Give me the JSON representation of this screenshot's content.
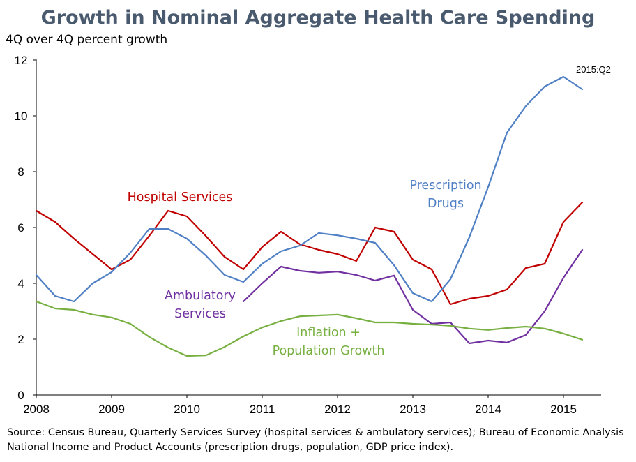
{
  "chart_data": {
    "type": "line",
    "title": "Growth in Nominal Aggregate Health Care Spending",
    "ylabel": "4Q over 4Q percent growth",
    "xlabel": "",
    "ylim": [
      0,
      12
    ],
    "yticks": [
      0,
      2,
      4,
      6,
      8,
      10,
      12
    ],
    "xlim": [
      2008,
      2015.5
    ],
    "xticks": [
      2008,
      2009,
      2010,
      2011,
      2012,
      2013,
      2014,
      2015
    ],
    "grid": false,
    "annotation": {
      "text": "2015:Q2"
    },
    "series": [
      {
        "name": "Hospital Services",
        "label_lines": [
          "Hospital Services"
        ],
        "color": "#c00000",
        "x": [
          2008,
          2008.25,
          2008.5,
          2008.75,
          2009,
          2009.25,
          2009.5,
          2009.75,
          2010,
          2010.25,
          2010.5,
          2010.75,
          2011,
          2011.25,
          2011.5,
          2011.75,
          2012,
          2012.25,
          2012.5,
          2012.75,
          2013,
          2013.25,
          2013.5,
          2013.75,
          2014,
          2014.25,
          2014.5,
          2014.75,
          2015,
          2015.25
        ],
        "values": [
          6.6,
          6.2,
          5.6,
          5.05,
          4.5,
          4.85,
          5.7,
          6.6,
          6.4,
          5.7,
          4.95,
          4.5,
          5.3,
          5.85,
          5.4,
          5.2,
          5.05,
          4.8,
          6.0,
          5.85,
          4.85,
          4.5,
          3.25,
          3.45,
          3.55,
          3.78,
          4.55,
          4.7,
          6.2,
          6.9
        ]
      },
      {
        "name": "Prescription Drugs",
        "label_lines": [
          "Prescription",
          "Drugs"
        ],
        "color": "#4f7fc4",
        "x": [
          2008,
          2008.25,
          2008.5,
          2008.75,
          2009,
          2009.25,
          2009.5,
          2009.75,
          2010,
          2010.25,
          2010.5,
          2010.75,
          2011,
          2011.25,
          2011.5,
          2011.75,
          2012,
          2012.25,
          2012.5,
          2012.75,
          2013,
          2013.25,
          2013.5,
          2013.75,
          2014,
          2014.25,
          2014.5,
          2014.75,
          2015,
          2015.25
        ],
        "values": [
          4.3,
          3.55,
          3.35,
          4.0,
          4.4,
          5.1,
          5.95,
          5.95,
          5.6,
          5.0,
          4.3,
          4.05,
          4.7,
          5.15,
          5.35,
          5.8,
          5.72,
          5.6,
          5.45,
          4.65,
          3.65,
          3.35,
          4.15,
          5.65,
          7.45,
          9.4,
          10.35,
          11.05,
          11.4,
          10.95
        ]
      },
      {
        "name": "Ambulatory Services",
        "label_lines": [
          "Ambulatory",
          "Services"
        ],
        "color": "#7030a0",
        "x": [
          2010.75,
          2011,
          2011.25,
          2011.5,
          2011.75,
          2012,
          2012.25,
          2012.5,
          2012.75,
          2013,
          2013.25,
          2013.5,
          2013.75,
          2014,
          2014.25,
          2014.5,
          2014.75,
          2015,
          2015.25
        ],
        "values": [
          3.35,
          4.0,
          4.6,
          4.45,
          4.38,
          4.42,
          4.3,
          4.1,
          4.28,
          3.05,
          2.55,
          2.6,
          1.85,
          1.95,
          1.88,
          2.15,
          3.0,
          4.2,
          5.2
        ]
      },
      {
        "name": "Inflation + Population Growth",
        "label_lines": [
          "Inflation +",
          "Population Growth"
        ],
        "color": "#77b041",
        "x": [
          2008,
          2008.25,
          2008.5,
          2008.75,
          2009,
          2009.25,
          2009.5,
          2009.75,
          2010,
          2010.25,
          2010.5,
          2010.75,
          2011,
          2011.25,
          2011.5,
          2011.75,
          2012,
          2012.25,
          2012.5,
          2012.75,
          2013,
          2013.25,
          2013.5,
          2013.75,
          2014,
          2014.25,
          2014.5,
          2014.75,
          2015,
          2015.25
        ],
        "values": [
          3.35,
          3.1,
          3.05,
          2.88,
          2.78,
          2.55,
          2.08,
          1.7,
          1.4,
          1.42,
          1.72,
          2.1,
          2.42,
          2.65,
          2.82,
          2.85,
          2.88,
          2.75,
          2.6,
          2.6,
          2.55,
          2.52,
          2.48,
          2.38,
          2.33,
          2.4,
          2.45,
          2.38,
          2.2,
          1.98
        ]
      }
    ],
    "source": "Source: Census Bureau, Quarterly Services Survey (hospital services & ambulatory services); Bureau of Economic Analysis National Income and Product Accounts (prescription drugs, population, GDP price index)."
  }
}
